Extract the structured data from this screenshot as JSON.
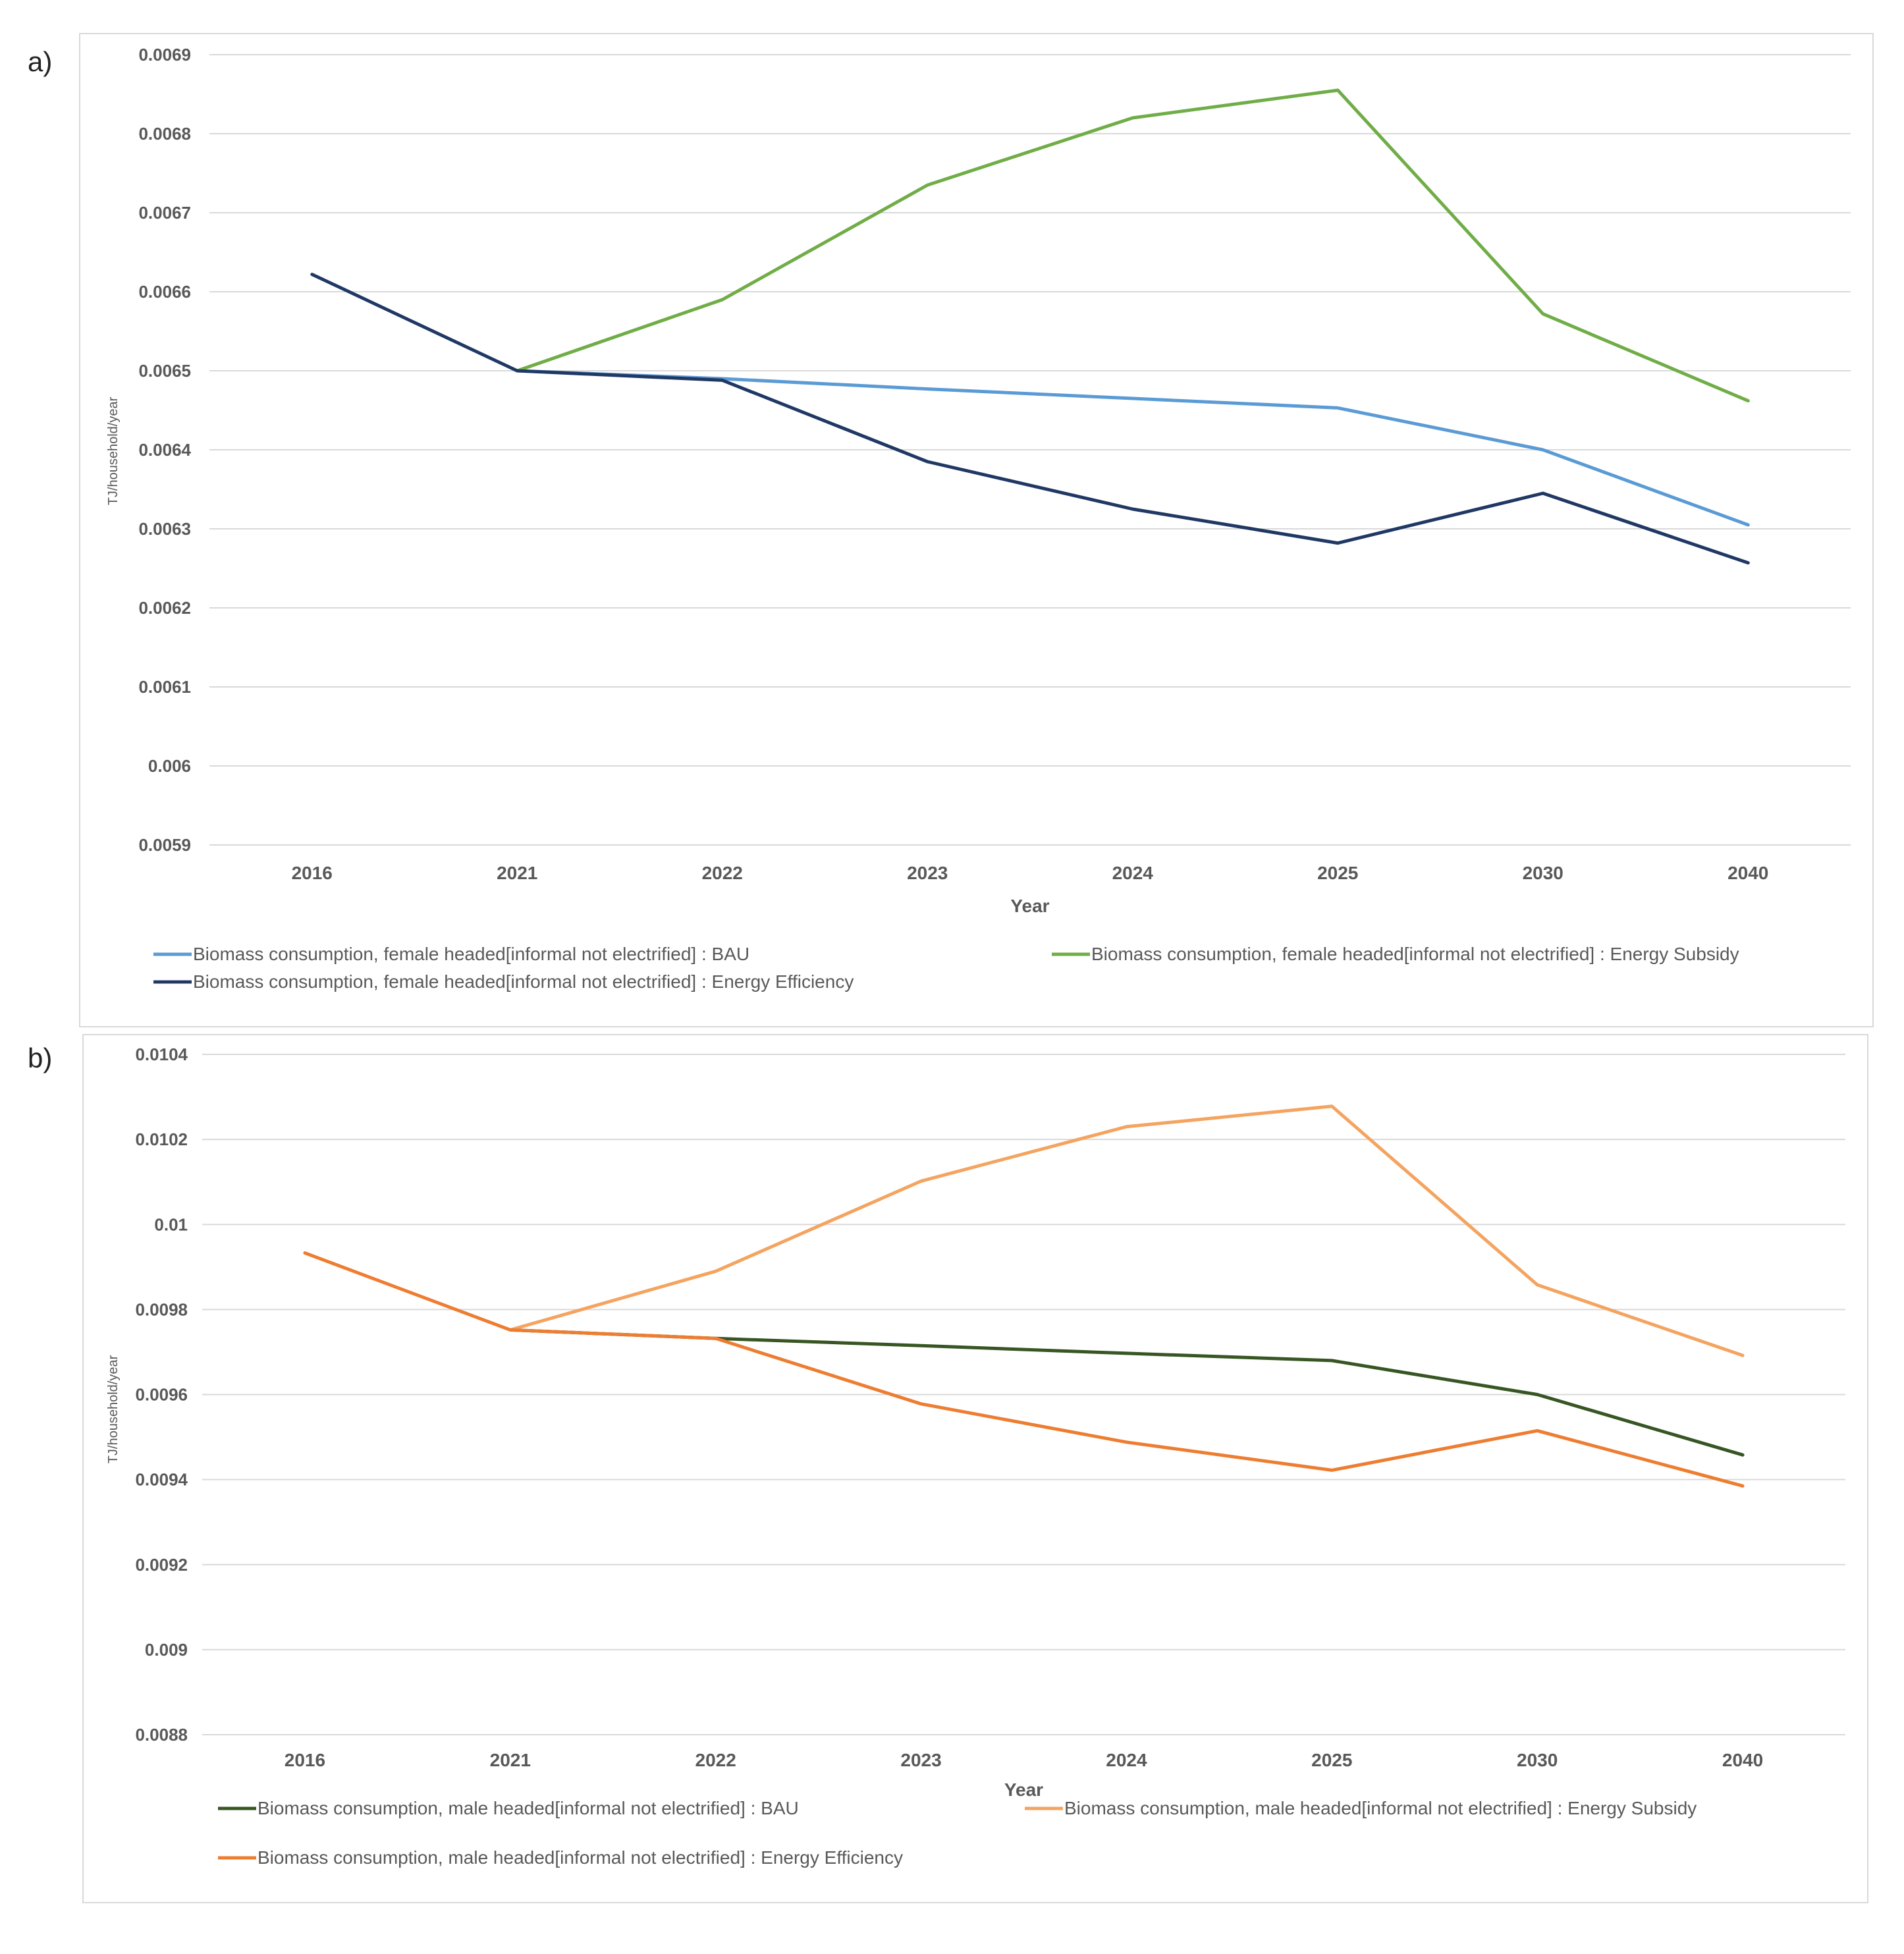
{
  "panel_labels": [
    "a)",
    "b)"
  ],
  "chart_data": [
    {
      "type": "line",
      "title": "",
      "xlabel": "Year",
      "ylabel": "TJ/household/year",
      "categories": [
        "2016",
        "2021",
        "2022",
        "2023",
        "2024",
        "2025",
        "2030",
        "2040"
      ],
      "ylim": [
        0.0059,
        0.0069
      ],
      "yticks": [
        0.0059,
        0.006,
        0.0061,
        0.0062,
        0.0063,
        0.0064,
        0.0065,
        0.0066,
        0.0067,
        0.0068,
        0.0069
      ],
      "ytick_labels": [
        "0.0059",
        "0.006",
        "0.0061",
        "0.0062",
        "0.0063",
        "0.0064",
        "0.0065",
        "0.0066",
        "0.0067",
        "0.0068",
        "0.0069"
      ],
      "grid": true,
      "legend": "bottom",
      "series": [
        {
          "name": "Biomass consumption, female headed[informal not electrified] : BAU",
          "color": "#5b9bd5",
          "values": [
            null,
            0.0065,
            0.00649,
            0.006477,
            0.006465,
            0.006453,
            0.0064,
            0.006305
          ]
        },
        {
          "name": "Biomass consumption, female headed[informal not electrified] : Energy Subsidy",
          "color": "#70ad47",
          "values": [
            null,
            0.0065,
            0.00659,
            0.006735,
            0.00682,
            0.006855,
            0.006572,
            0.006462
          ]
        },
        {
          "name": "Biomass consumption, female headed[informal not electrified] : Energy Efficiency",
          "color": "#203864",
          "values": [
            0.006622,
            0.0065,
            0.006488,
            0.006385,
            0.006325,
            0.006282,
            0.006345,
            0.006257
          ]
        }
      ]
    },
    {
      "type": "line",
      "title": "",
      "xlabel": "Year",
      "ylabel": "TJ/household/year",
      "categories": [
        "2016",
        "2021",
        "2022",
        "2023",
        "2024",
        "2025",
        "2030",
        "2040"
      ],
      "ylim": [
        0.0088,
        0.0104
      ],
      "yticks": [
        0.0088,
        0.009,
        0.0092,
        0.0094,
        0.0096,
        0.0098,
        0.01,
        0.0102,
        0.0104
      ],
      "ytick_labels": [
        "0.0088",
        "0.009",
        "0.0092",
        "0.0094",
        "0.0096",
        "0.0098",
        "0.01",
        "0.0102",
        "0.0104"
      ],
      "grid": true,
      "legend": "bottom",
      "series": [
        {
          "name": "Biomass consumption, male headed[informal not electrified] : BAU",
          "color": "#375623",
          "values": [
            null,
            0.009752,
            0.009732,
            0.009715,
            0.009697,
            0.00968,
            0.0096,
            0.009458
          ]
        },
        {
          "name": "Biomass consumption, male headed[informal not electrified] : Energy Subsidy",
          "color": "#f4a460",
          "values": [
            null,
            0.009752,
            0.00989,
            0.010102,
            0.01023,
            0.010278,
            0.009858,
            0.009692
          ]
        },
        {
          "name": "Biomass consumption, male headed[informal not electrified] : Energy Efficiency",
          "color": "#ed7d31",
          "values": [
            0.009933,
            0.009752,
            0.009732,
            0.009578,
            0.009488,
            0.009422,
            0.009515,
            0.009385
          ]
        }
      ]
    }
  ]
}
